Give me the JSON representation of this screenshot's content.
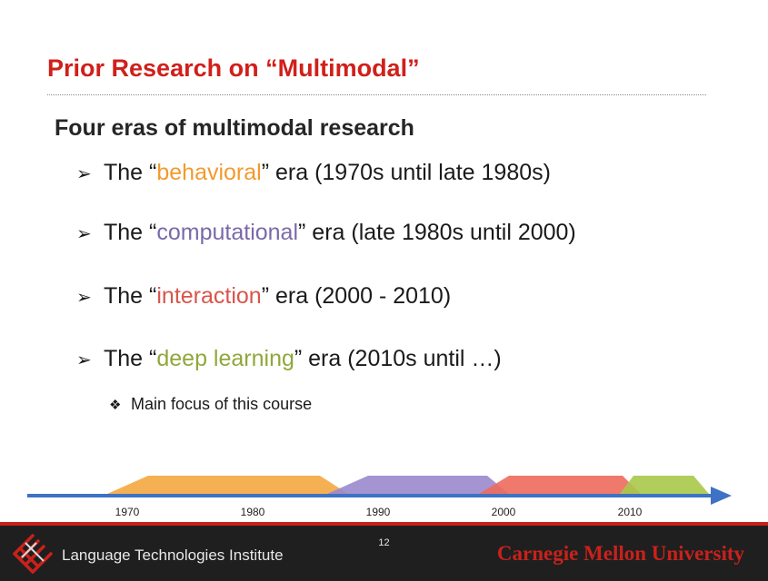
{
  "slide": {
    "title": "Prior Research on “Multimodal”",
    "subtitle": "Four eras of multimodal research",
    "bullets": [
      {
        "prefix": "The “",
        "term": "behavioral",
        "suffix": "” era (1970s until late 1980s)",
        "color": "#f39a2e"
      },
      {
        "prefix": "The “",
        "term": "computational",
        "suffix": "” era (late 1980s until 2000)",
        "color": "#7a6aa8"
      },
      {
        "prefix": "The “",
        "term": "interaction",
        "suffix": "” era (2000 - 2010)",
        "color": "#d9544a"
      },
      {
        "prefix": "The “",
        "term": "deep learning",
        "suffix": "” era (2010s until …)",
        "color": "#8fa83a"
      }
    ],
    "sub_bullet": "Main focus of this course"
  },
  "timeline": {
    "ticks": [
      "1970",
      "1980",
      "1990",
      "2000",
      "2010"
    ],
    "eras": [
      {
        "name": "behavioral",
        "color": "#f5a741"
      },
      {
        "name": "computational",
        "color": "#9a88cc"
      },
      {
        "name": "interaction",
        "color": "#ee6a5e"
      },
      {
        "name": "deep learning",
        "color": "#a9c84a"
      }
    ],
    "arrow_color": "#3e72c4"
  },
  "footer": {
    "institute": "Language Technologies Institute",
    "page_number": "12",
    "university": "Carnegie Mellon University"
  }
}
